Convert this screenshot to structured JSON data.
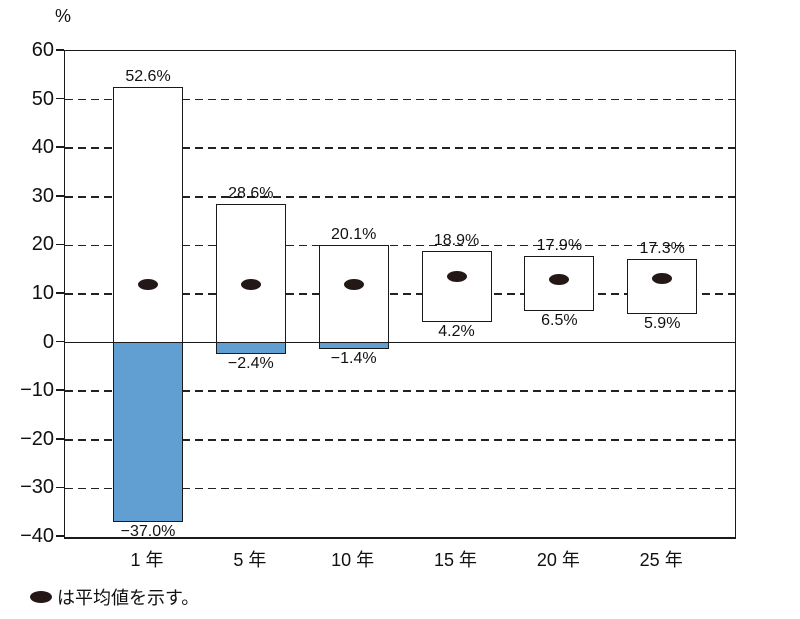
{
  "figure": {
    "y_unit_label": "%",
    "footnote": {
      "icon": "mean-dot",
      "text": "は平均値を示す。"
    }
  },
  "chart_data": {
    "type": "range-bar",
    "title": "",
    "ylabel": "%",
    "xlabel": "",
    "ylim": [
      -40,
      60
    ],
    "y_tick_step": 10,
    "y_tick_labels": [
      "60",
      "50",
      "40",
      "30",
      "20",
      "10",
      "0",
      "−10",
      "−20",
      "−30",
      "−40"
    ],
    "grid": "horizontal-dashed",
    "legend_note": "●は平均値を示す。",
    "categories": [
      "1 年",
      "5 年",
      "10 年",
      "15 年",
      "20 年",
      "25 年"
    ],
    "bars": [
      {
        "category": "1 年",
        "max": 52.6,
        "min": -37.0,
        "mean": 11.8,
        "max_label": "52.6%",
        "min_label": "−37.0%"
      },
      {
        "category": "5 年",
        "max": 28.6,
        "min": -2.4,
        "mean": 11.8,
        "max_label": "28.6%",
        "min_label": "−2.4%"
      },
      {
        "category": "10 年",
        "max": 20.1,
        "min": -1.4,
        "mean": 11.8,
        "max_label": "20.1%",
        "min_label": "−1.4%"
      },
      {
        "category": "15 年",
        "max": 18.9,
        "min": 4.2,
        "mean": 13.5,
        "max_label": "18.9%",
        "min_label": "4.2%"
      },
      {
        "category": "20 年",
        "max": 17.9,
        "min": 6.5,
        "mean": 12.8,
        "max_label": "17.9%",
        "min_label": "6.5%"
      },
      {
        "category": "25 年",
        "max": 17.3,
        "min": 5.9,
        "mean": 13.1,
        "max_label": "17.3%",
        "min_label": "5.9%"
      }
    ],
    "colors": {
      "negative_fill": "#619fd3",
      "bar_fill": "#ffffff",
      "line": "#1a1a1a",
      "mean_dot": "#231815",
      "text": "#111111"
    }
  }
}
